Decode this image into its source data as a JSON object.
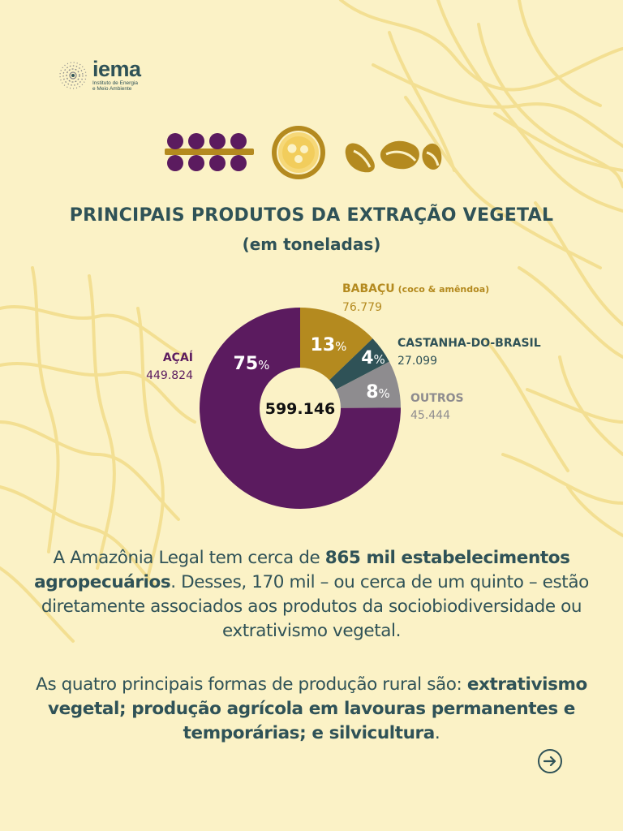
{
  "brand": {
    "name": "iema",
    "subtitle": "Instituto de Energia e Meio Ambiente"
  },
  "header": {
    "title": "PRINCIPAIS PRODUTOS DA EXTRAÇÃO VEGETAL",
    "subtitle": "(em toneladas)"
  },
  "icons": [
    "acai-icon",
    "babacu-icon",
    "castanha-icon"
  ],
  "chart_data": {
    "type": "pie",
    "center_label": "599.146",
    "series": [
      {
        "name": "AÇAÍ",
        "value": 449824,
        "value_label": "449.824",
        "percent": 75,
        "percent_label": "75",
        "color": "#5b1b5f"
      },
      {
        "name": "BABAÇU",
        "name_suffix": "(coco & amêndoa)",
        "value": 76779,
        "value_label": "76.779",
        "percent": 13,
        "percent_label": "13",
        "color": "#b48a1f"
      },
      {
        "name": "CASTANHA-DO-BRASIL",
        "value": 27099,
        "value_label": "27.099",
        "percent": 4,
        "percent_label": "4",
        "color": "#2f5257"
      },
      {
        "name": "OUTROS",
        "value": 45444,
        "value_label": "45.444",
        "percent": 8,
        "percent_label": "8",
        "color": "#8e8c8f"
      }
    ],
    "percent_symbol": "%"
  },
  "body": {
    "p1": {
      "a": "A Amazônia Legal tem cerca de ",
      "b": "865 mil estabelecimentos agropecuários",
      "c": ". Desses, 170 mil – ou cerca de um quinto – estão diretamente associados aos produtos da sociobiodiversidade ou extrativismo vegetal."
    },
    "p2": {
      "a": "As quatro principais formas de produção rural são: ",
      "b": "extrativismo vegetal; produção agrícola em lavouras permanentes e temporárias; e silvicultura",
      "c": "."
    }
  },
  "nav": {
    "next": "arrow-right-icon"
  },
  "colors": {
    "background": "#fbf2c6",
    "text": "#2f5257",
    "acai": "#5b1b5f",
    "babacu": "#b48a1f",
    "castanha": "#2f5257",
    "outros": "#8e8c8f",
    "deco_lines": "#f2dd8e"
  }
}
